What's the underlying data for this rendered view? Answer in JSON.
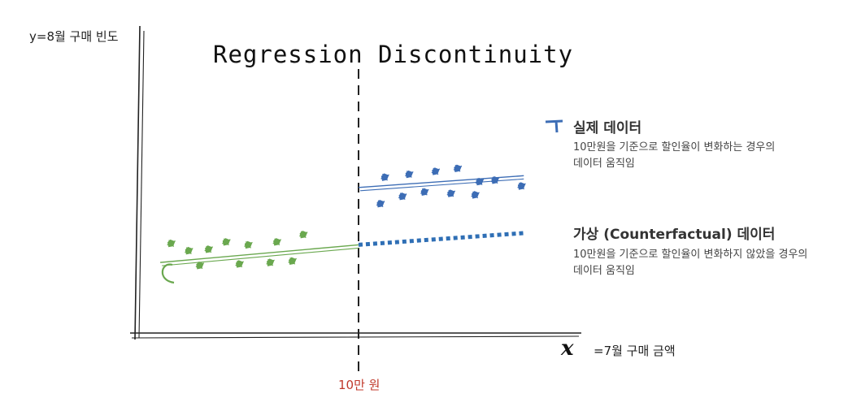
{
  "title": "Regression Discontinuity",
  "axes": {
    "y_label": "y=8월 구매 빈도",
    "x_symbol": "x",
    "x_label": "=7월 구매 금액",
    "cutoff_label": "10만 원"
  },
  "legend": {
    "treatment": {
      "title": "실제 데이터",
      "desc_line1": "10만원을 기준으로 할인율이 변화하는 경우의",
      "desc_line2": "데이터 움직임"
    },
    "counterfactual": {
      "title": "가상 (Counterfactual) 데이터",
      "desc_line1": "10만원을 기준으로 할인율이 변화하지 않았을 경우의",
      "desc_line2": "데이터 움직임"
    }
  },
  "colors": {
    "control": "#6aa84f",
    "treatment": "#3d6db5",
    "counterfactual": "#2f6fb5",
    "cutoff_text": "#c0392b",
    "axis": "#222222"
  },
  "chart_data": {
    "type": "scatter",
    "cutoff_x": 10,
    "series": [
      {
        "group": "control",
        "points": [
          [
            1.5,
            6.1
          ],
          [
            2.3,
            5.6
          ],
          [
            3.2,
            5.7
          ],
          [
            4.0,
            6.2
          ],
          [
            5.0,
            6.0
          ],
          [
            6.3,
            6.2
          ],
          [
            7.5,
            6.7
          ],
          [
            2.8,
            4.6
          ],
          [
            4.6,
            4.7
          ],
          [
            6.0,
            4.8
          ],
          [
            7.0,
            4.9
          ]
        ],
        "fit_line": [
          [
            1.0,
            4.8
          ],
          [
            10.0,
            6.0
          ]
        ]
      },
      {
        "group": "treatment",
        "points": [
          [
            11.2,
            10.6
          ],
          [
            12.3,
            10.8
          ],
          [
            13.5,
            11.0
          ],
          [
            14.5,
            11.2
          ],
          [
            15.5,
            10.3
          ],
          [
            16.2,
            10.4
          ],
          [
            17.4,
            10.0
          ],
          [
            12.0,
            9.3
          ],
          [
            13.0,
            9.6
          ],
          [
            14.2,
            9.5
          ],
          [
            15.3,
            9.4
          ],
          [
            11.0,
            8.8
          ]
        ],
        "fit_line": [
          [
            10.0,
            9.9
          ],
          [
            17.5,
            10.7
          ]
        ]
      },
      {
        "group": "counterfactual",
        "line": [
          [
            10.0,
            6.0
          ],
          [
            17.5,
            6.8
          ]
        ],
        "style": "dotted"
      }
    ]
  }
}
